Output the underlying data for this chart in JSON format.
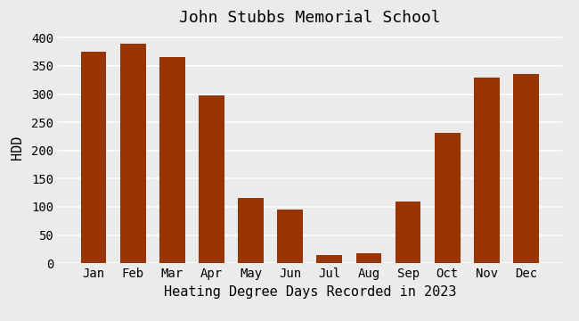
{
  "title": "John Stubbs Memorial School",
  "xlabel": "Heating Degree Days Recorded in 2023",
  "ylabel": "HDD",
  "categories": [
    "Jan",
    "Feb",
    "Mar",
    "Apr",
    "May",
    "Jun",
    "Jul",
    "Aug",
    "Sep",
    "Oct",
    "Nov",
    "Dec"
  ],
  "values": [
    375,
    390,
    366,
    298,
    115,
    95,
    15,
    18,
    109,
    231,
    330,
    336
  ],
  "bar_color": "#993300",
  "background_color": "#ebebeb",
  "plot_bg_color": "#ebebeb",
  "ylim": [
    0,
    410
  ],
  "yticks": [
    0,
    50,
    100,
    150,
    200,
    250,
    300,
    350,
    400
  ],
  "title_fontsize": 13,
  "label_fontsize": 11,
  "tick_fontsize": 10,
  "grid_color": "#ffffff",
  "grid_linewidth": 1.2
}
